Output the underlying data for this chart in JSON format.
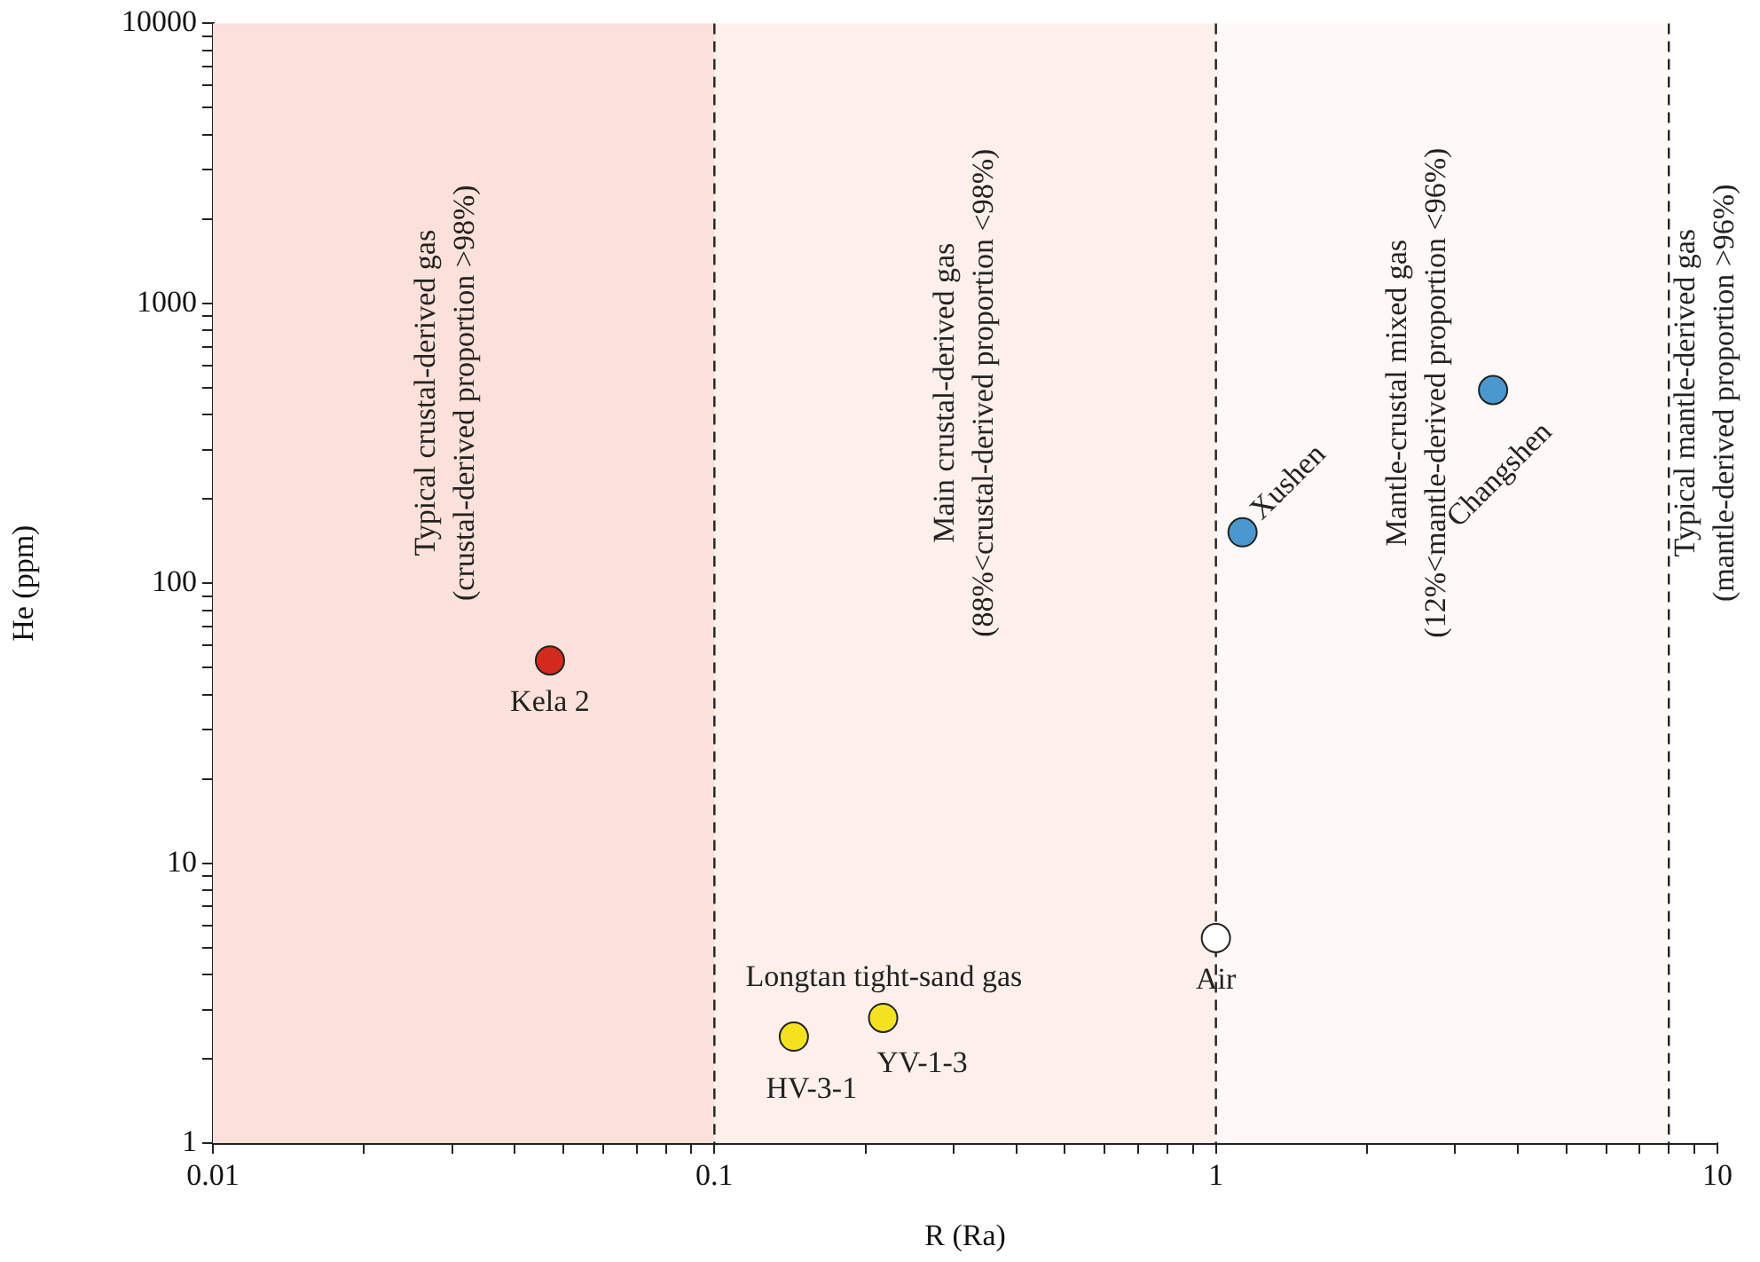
{
  "chart_data": {
    "type": "scatter",
    "xlabel": "R (Ra)",
    "ylabel": "He (ppm)",
    "series": [
      {
        "name": "Kela 2",
        "color": "#d42a1e",
        "x": [
          0.047
        ],
        "values": [
          53
        ]
      },
      {
        "name": "HV-3-1",
        "color": "#f5e21f",
        "x": [
          0.144
        ],
        "values": [
          2.4
        ]
      },
      {
        "name": "YV-1-3",
        "color": "#f5e21f",
        "x": [
          0.217
        ],
        "values": [
          2.8
        ]
      },
      {
        "name": "Air",
        "color": "#ffffff",
        "x": [
          1
        ],
        "values": [
          5.4
        ]
      },
      {
        "name": "Xushen",
        "color": "#4a98cf",
        "x": [
          1.13
        ],
        "values": [
          152
        ]
      },
      {
        "name": "Changshen",
        "color": "#4a98cf",
        "x": [
          3.57
        ],
        "values": [
          490
        ]
      }
    ],
    "annotations": [
      "Longtan tight-sand gas"
    ],
    "bands": [
      {
        "axis": "x",
        "from": 0.01,
        "to": 0.1,
        "color": "#fbe1d9",
        "label": "Typical crustal-derived gas\n(crustal-derived proportion >98%)"
      },
      {
        "axis": "x",
        "from": 0.1,
        "to": 1,
        "color": "#fdefea",
        "label": "Main crustal-derived gas\n(88%<crustal-derived proportion <98%)"
      },
      {
        "axis": "x",
        "from": 1,
        "to": 8,
        "color": "#fef8f6",
        "label": "Mantle-crustal mixed gas\n(12%<mantle-derived proportion <96%)"
      },
      {
        "axis": "x",
        "from": 8,
        "to": 10,
        "color": "#ffffff",
        "label": "Typical mantle-derived gas\n(mantle-derived proportion >96%)"
      }
    ],
    "ref_lines": [
      {
        "axis": "x",
        "value": 0.1,
        "line_style": "dashed"
      },
      {
        "axis": "x",
        "value": 1,
        "line_style": "dashed"
      },
      {
        "axis": "x",
        "value": 8,
        "line_style": "dashed"
      }
    ],
    "log": "xy",
    "grid": false,
    "legend": false,
    "marker": "circle",
    "xlim": [
      0.01,
      10
    ],
    "xticks": [
      0.01,
      {
        "value": 0.02,
        "label": null
      },
      {
        "value": 0.03,
        "label": null
      },
      {
        "value": 0.04,
        "label": null
      },
      {
        "value": 0.05,
        "label": null
      },
      {
        "value": 0.06,
        "label": null
      },
      {
        "value": 0.07,
        "label": null
      },
      {
        "value": 0.08,
        "label": null
      },
      {
        "value": 0.09,
        "label": null
      },
      0.1,
      {
        "value": 0.2,
        "label": null
      },
      {
        "value": 0.3,
        "label": null
      },
      {
        "value": 0.4,
        "label": null
      },
      {
        "value": 0.5,
        "label": null
      },
      {
        "value": 0.6,
        "label": null
      },
      {
        "value": 0.7,
        "label": null
      },
      {
        "value": 0.8,
        "label": null
      },
      {
        "value": 0.9,
        "label": null
      },
      1,
      {
        "value": 2,
        "label": null
      },
      {
        "value": 3,
        "label": null
      },
      {
        "value": 4,
        "label": null
      },
      {
        "value": 5,
        "label": null
      },
      {
        "value": 6,
        "label": null
      },
      {
        "value": 7,
        "label": null
      },
      {
        "value": 8,
        "label": null
      },
      {
        "value": 9,
        "label": null
      },
      10
    ],
    "ylim": [
      1,
      10000
    ],
    "yticks": [
      1,
      {
        "value": 2,
        "label": null
      },
      {
        "value": 3,
        "label": null
      },
      {
        "value": 4,
        "label": null
      },
      {
        "value": 5,
        "label": null
      },
      {
        "value": 6,
        "label": null
      },
      {
        "value": 7,
        "label": null
      },
      {
        "value": 8,
        "label": null
      },
      {
        "value": 9,
        "label": null
      },
      10,
      {
        "value": 20,
        "label": null
      },
      {
        "value": 30,
        "label": null
      },
      {
        "value": 40,
        "label": null
      },
      {
        "value": 50,
        "label": null
      },
      {
        "value": 60,
        "label": null
      },
      {
        "value": 70,
        "label": null
      },
      {
        "value": 80,
        "label": null
      },
      {
        "value": 90,
        "label": null
      },
      100,
      {
        "value": 200,
        "label": null
      },
      {
        "value": 300,
        "label": null
      },
      {
        "value": 400,
        "label": null
      },
      {
        "value": 500,
        "label": null
      },
      {
        "value": 600,
        "label": null
      },
      {
        "value": 700,
        "label": null
      },
      {
        "value": 800,
        "label": null
      },
      {
        "value": 900,
        "label": null
      },
      1000,
      {
        "value": 2000,
        "label": null
      },
      {
        "value": 3000,
        "label": null
      },
      {
        "value": 4000,
        "label": null
      },
      {
        "value": 5000,
        "label": null
      },
      {
        "value": 6000,
        "label": null
      },
      {
        "value": 7000,
        "label": null
      },
      {
        "value": 8000,
        "label": null
      },
      {
        "value": 9000,
        "label": null
      },
      10000
    ]
  }
}
